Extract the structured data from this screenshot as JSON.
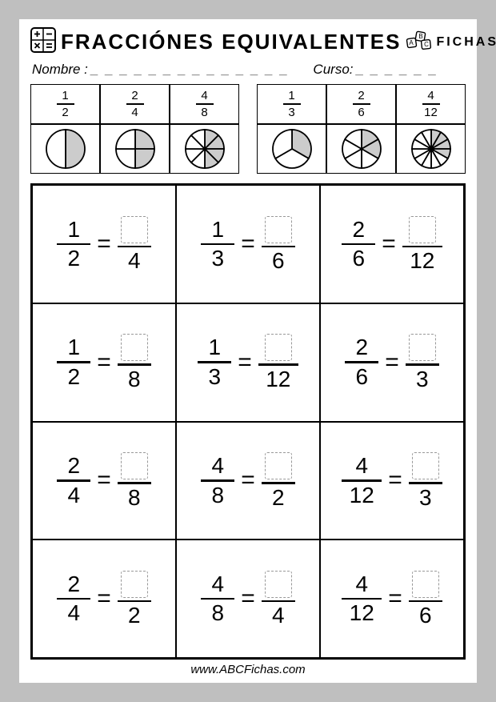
{
  "header": {
    "title": "FRACCIÓNES EQUIVALENTES",
    "brand": "FICHAS"
  },
  "fields": {
    "name_label": "Nombre :",
    "name_dashes": "_ _ _ _ _ _ _ _ _ _ _ _ _ _",
    "course_label": "Curso:",
    "course_dashes": "_ _ _ _ _ _"
  },
  "examples": {
    "left": {
      "fractions": [
        {
          "num": "1",
          "den": "2",
          "slices": 2,
          "filled": 1
        },
        {
          "num": "2",
          "den": "4",
          "slices": 4,
          "filled": 2
        },
        {
          "num": "4",
          "den": "8",
          "slices": 8,
          "filled": 4
        }
      ]
    },
    "right": {
      "fractions": [
        {
          "num": "1",
          "den": "3",
          "slices": 3,
          "filled": 1
        },
        {
          "num": "2",
          "den": "6",
          "slices": 6,
          "filled": 2
        },
        {
          "num": "4",
          "den": "12",
          "slices": 12,
          "filled": 4
        }
      ]
    }
  },
  "exercises": [
    [
      {
        "lnum": "1",
        "lden": "2",
        "rden": "4"
      },
      {
        "lnum": "1",
        "lden": "3",
        "rden": "6"
      },
      {
        "lnum": "2",
        "lden": "6",
        "rden": "12"
      }
    ],
    [
      {
        "lnum": "1",
        "lden": "2",
        "rden": "8"
      },
      {
        "lnum": "1",
        "lden": "3",
        "rden": "12"
      },
      {
        "lnum": "2",
        "lden": "6",
        "rden": "3"
      }
    ],
    [
      {
        "lnum": "2",
        "lden": "4",
        "rden": "8"
      },
      {
        "lnum": "4",
        "lden": "8",
        "rden": "2"
      },
      {
        "lnum": "4",
        "lden": "12",
        "rden": "3"
      }
    ],
    [
      {
        "lnum": "2",
        "lden": "4",
        "rden": "2"
      },
      {
        "lnum": "4",
        "lden": "8",
        "rden": "4"
      },
      {
        "lnum": "4",
        "lden": "12",
        "rden": "6"
      }
    ]
  ],
  "eq_symbol": "=",
  "footer": "www.ABCFichas.com",
  "colors": {
    "page_bg": "#bfbfbf",
    "sheet_bg": "#ffffff",
    "line": "#000000",
    "dash": "#999999",
    "pie_fill": "#cccccc"
  },
  "pie_style": {
    "radius": 24,
    "stroke_width": 1.8,
    "fill": "#cccccc",
    "stroke": "#000000"
  }
}
